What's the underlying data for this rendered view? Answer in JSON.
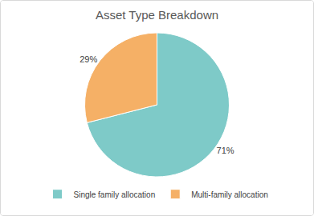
{
  "chart_data": {
    "type": "pie",
    "title": "Asset Type Breakdown",
    "categories": [
      "Single family allocation",
      "Multi-family allocation"
    ],
    "values": [
      71,
      29
    ],
    "value_labels": [
      "71%",
      "29%"
    ],
    "colors": [
      "#7ecac8",
      "#f5b066"
    ],
    "legend": "bottom",
    "data_labels": true
  }
}
